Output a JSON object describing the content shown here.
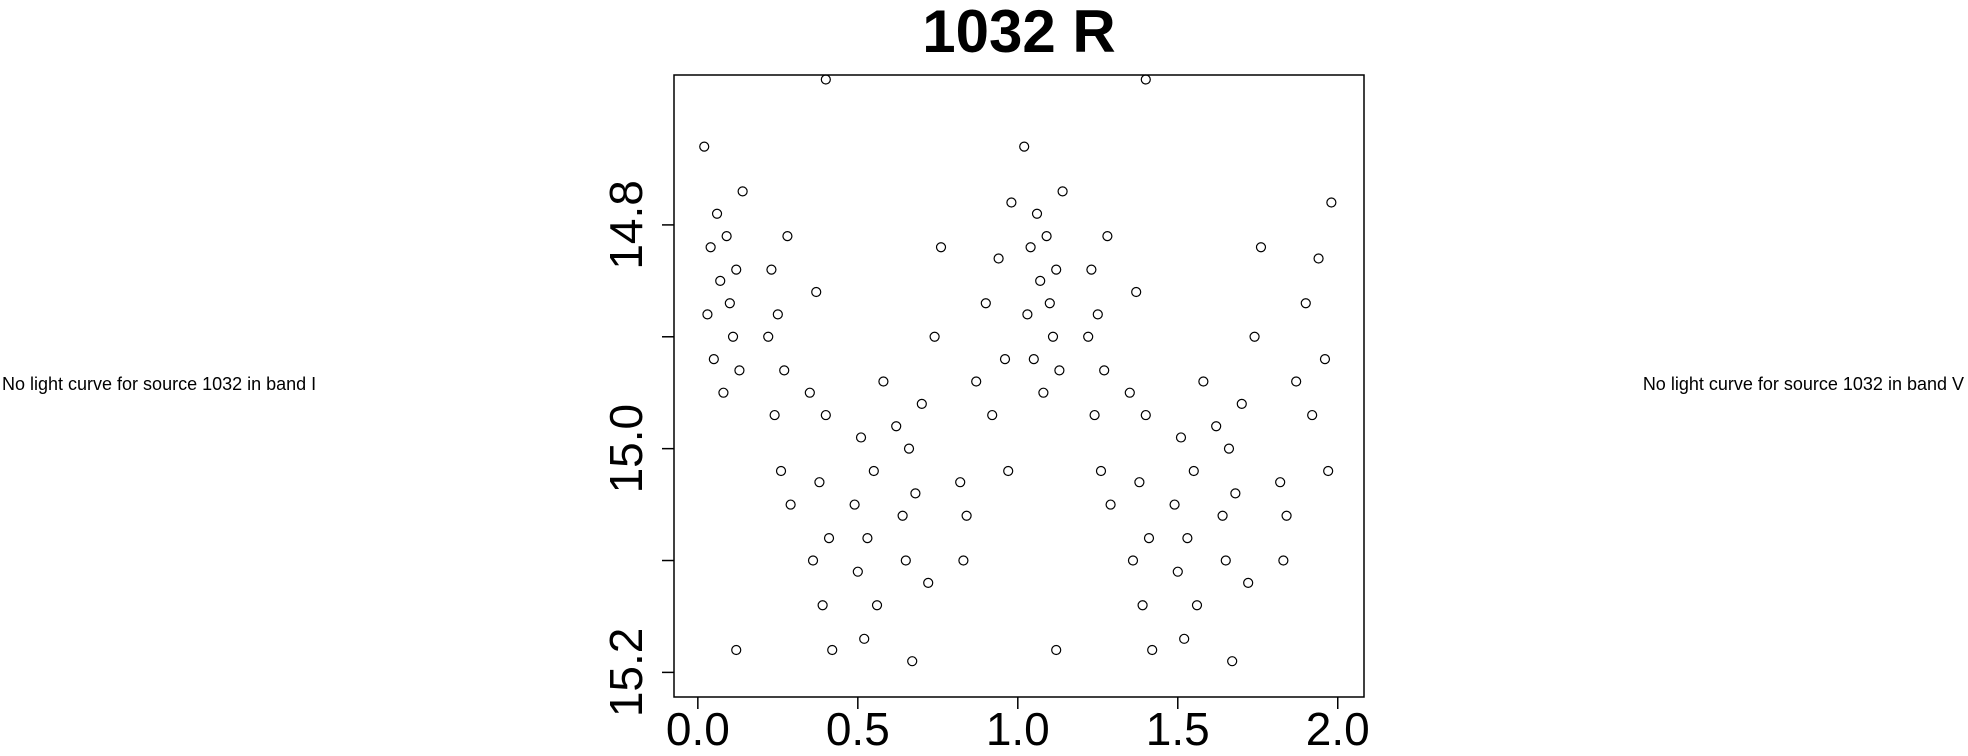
{
  "chart_data": {
    "type": "scatter",
    "title": "1032 R",
    "annotations": [
      "No light curve for source 1032 in band I",
      "No light curve for source 1032 in band V"
    ],
    "color": "#000000",
    "x": [
      0.02,
      0.03,
      0.04,
      0.05,
      0.06,
      0.07,
      0.08,
      0.09,
      0.1,
      0.11,
      0.12,
      0.13,
      0.14,
      0.12,
      0.22,
      0.23,
      0.24,
      0.25,
      0.26,
      0.27,
      0.28,
      0.29,
      0.35,
      0.36,
      0.37,
      0.38,
      0.39,
      0.4,
      0.41,
      0.42,
      0.4,
      0.49,
      0.5,
      0.51,
      0.52,
      0.53,
      0.55,
      0.56,
      0.58,
      0.62,
      0.64,
      0.65,
      0.66,
      0.67,
      0.68,
      0.7,
      0.72,
      0.74,
      0.76,
      0.82,
      0.83,
      0.84,
      0.87,
      0.9,
      0.92,
      0.94,
      0.96,
      0.97,
      0.98,
      1.02,
      1.03,
      1.04,
      1.05,
      1.06,
      1.07,
      1.08,
      1.09,
      1.1,
      1.11,
      1.12,
      1.13,
      1.14,
      1.12,
      1.22,
      1.23,
      1.24,
      1.25,
      1.26,
      1.27,
      1.28,
      1.29,
      1.35,
      1.36,
      1.37,
      1.38,
      1.39,
      1.4,
      1.41,
      1.42,
      1.4,
      1.49,
      1.5,
      1.51,
      1.52,
      1.53,
      1.55,
      1.56,
      1.58,
      1.62,
      1.64,
      1.65,
      1.66,
      1.67,
      1.68,
      1.7,
      1.72,
      1.74,
      1.76,
      1.82,
      1.83,
      1.84,
      1.87,
      1.9,
      1.92,
      1.94,
      1.96,
      1.97,
      1.98
    ],
    "y": [
      14.73,
      14.88,
      14.82,
      14.92,
      14.79,
      14.85,
      14.95,
      14.81,
      14.87,
      14.9,
      14.84,
      14.93,
      14.77,
      15.18,
      14.9,
      14.84,
      14.97,
      14.88,
      15.02,
      14.93,
      14.81,
      15.05,
      14.95,
      15.1,
      14.86,
      15.03,
      15.14,
      14.97,
      15.08,
      15.18,
      14.67,
      15.05,
      15.11,
      14.99,
      15.17,
      15.08,
      15.02,
      15.14,
      14.94,
      14.98,
      15.06,
      15.1,
      15.0,
      15.19,
      15.04,
      14.96,
      15.12,
      14.9,
      14.82,
      15.03,
      15.1,
      15.06,
      14.94,
      14.87,
      14.97,
      14.83,
      14.92,
      15.02,
      14.78,
      14.73,
      14.88,
      14.82,
      14.92,
      14.79,
      14.85,
      14.95,
      14.81,
      14.87,
      14.9,
      14.84,
      14.93,
      14.77,
      15.18,
      14.9,
      14.84,
      14.97,
      14.88,
      15.02,
      14.93,
      14.81,
      15.05,
      14.95,
      15.1,
      14.86,
      15.03,
      15.14,
      14.97,
      15.08,
      15.18,
      14.67,
      15.05,
      15.11,
      14.99,
      15.17,
      15.08,
      15.02,
      15.14,
      14.94,
      14.98,
      15.06,
      15.1,
      15.0,
      15.19,
      15.04,
      14.96,
      15.12,
      14.9,
      14.82,
      15.03,
      15.1,
      15.06,
      14.94,
      14.87,
      14.97,
      14.83,
      14.92,
      15.02,
      14.78
    ],
    "xlim": [
      -0.0745,
      2.082
    ],
    "ylim": [
      15.222,
      14.666
    ],
    "xticks": [
      {
        "value": 0,
        "label": "0.0"
      },
      0.5,
      {
        "value": 1,
        "label": "1.0"
      },
      1.5,
      {
        "value": 2,
        "label": "2.0"
      }
    ],
    "yticks": [
      14.8,
      {
        "value": 15,
        "label": "15.0"
      },
      15.2
    ],
    "yminor_ticks": [
      14.9,
      15.1
    ]
  }
}
